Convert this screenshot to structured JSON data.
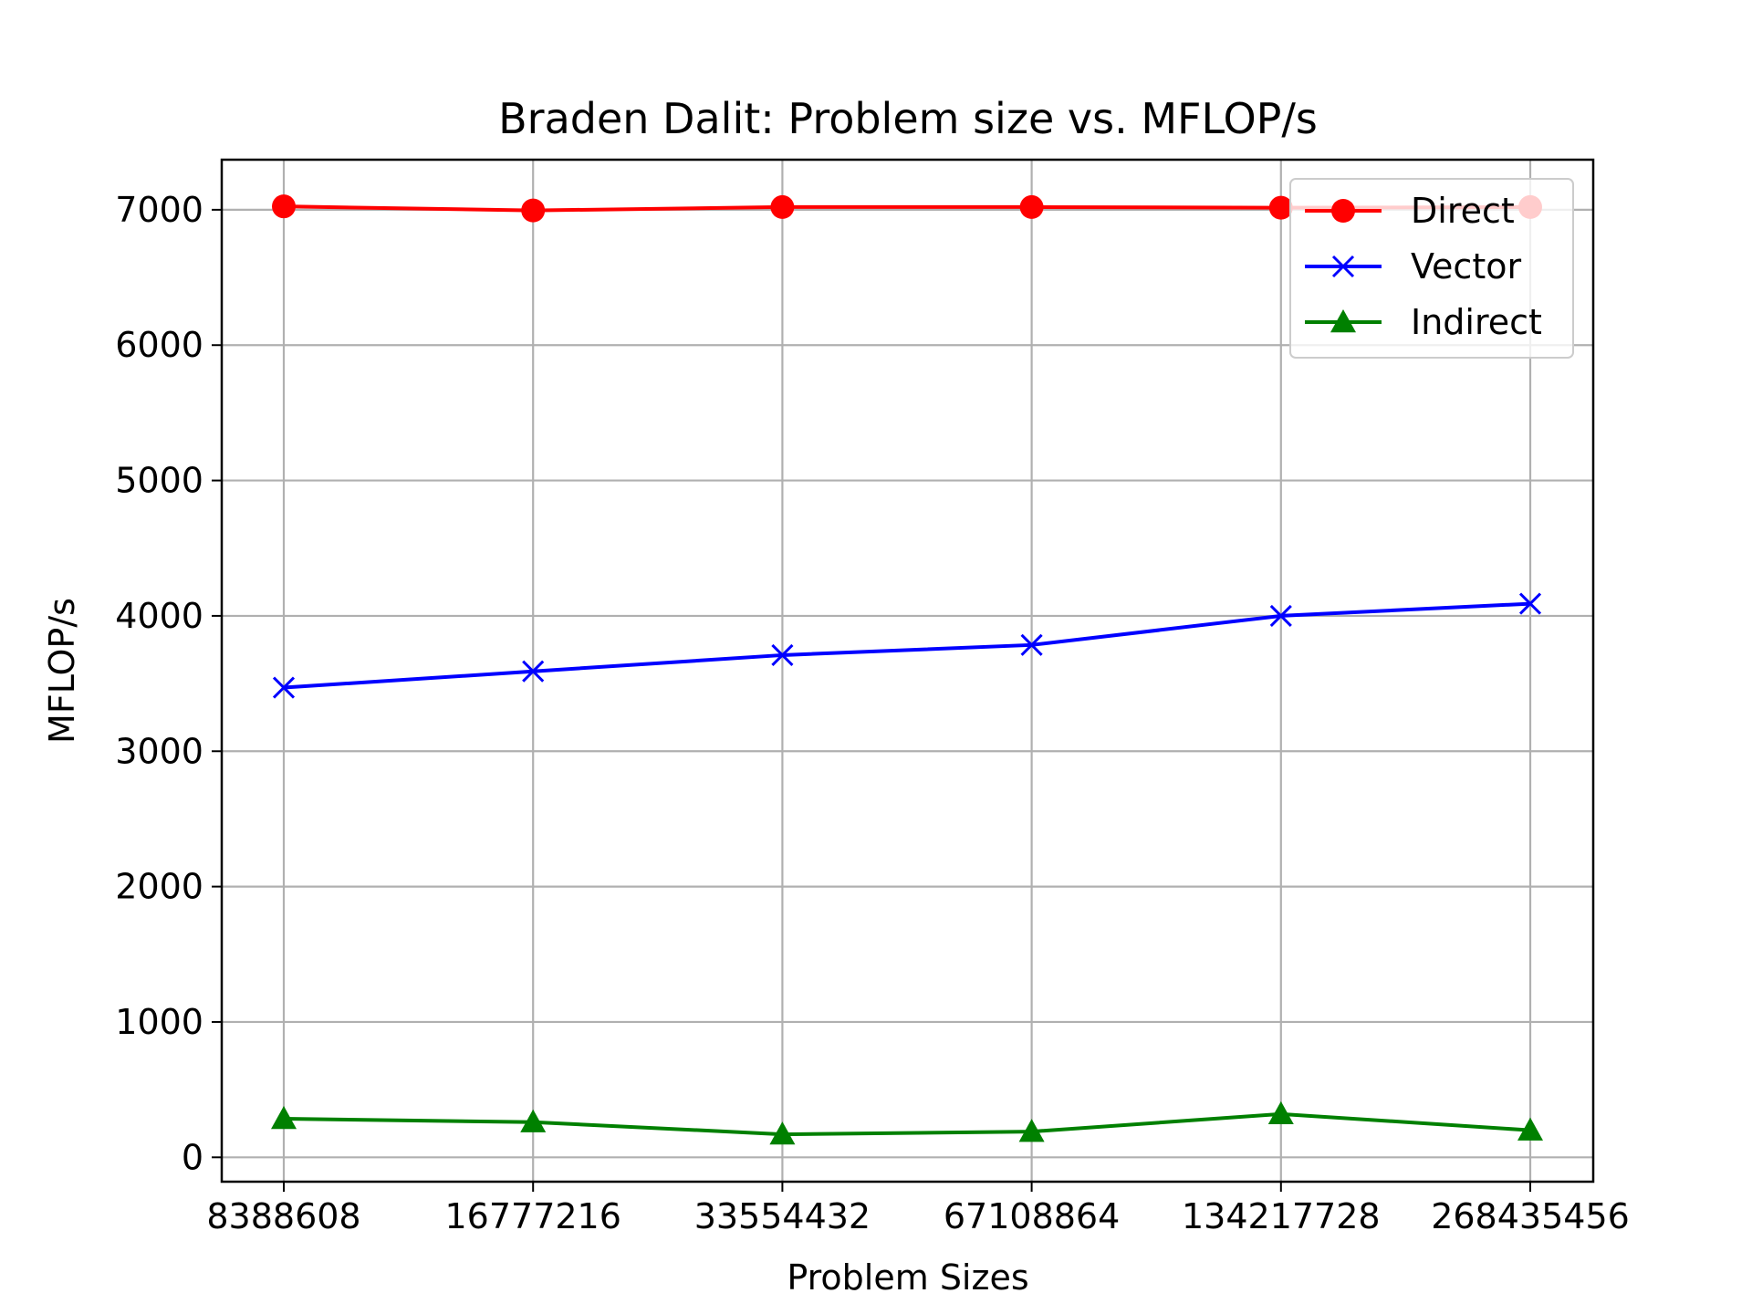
{
  "chart_data": {
    "type": "line",
    "title": "Braden Dalit: Problem size vs. MFLOP/s",
    "xlabel": "Problem Sizes",
    "ylabel": "MFLOP/s",
    "categories": [
      "8388608",
      "16777216",
      "33554432",
      "67108864",
      "134217728",
      "268435456"
    ],
    "y_ticks": [
      "0",
      "1000",
      "2000",
      "3000",
      "4000",
      "5000",
      "6000",
      "7000"
    ],
    "ylim": [
      -180,
      7370
    ],
    "grid": true,
    "legend_position": "top-right",
    "series": [
      {
        "name": "Direct",
        "color": "#ff0000",
        "marker": "circle",
        "values": [
          7025,
          6995,
          7020,
          7020,
          7015,
          7020
        ]
      },
      {
        "name": "Vector",
        "color": "#0000ff",
        "marker": "x",
        "values": [
          3470,
          3590,
          3710,
          3785,
          4000,
          4090
        ]
      },
      {
        "name": "Indirect",
        "color": "#008000",
        "marker": "triangle",
        "values": [
          285,
          260,
          170,
          190,
          320,
          200
        ]
      }
    ]
  }
}
